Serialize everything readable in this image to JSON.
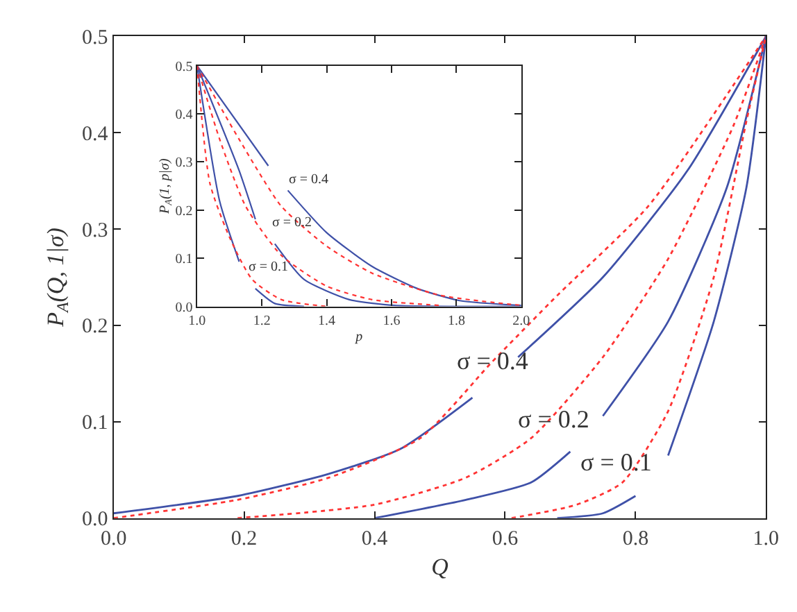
{
  "chart_data": [
    {
      "type": "line",
      "xlabel": "Q",
      "ylabel": "P$_{A}$(Q, 1|σ)",
      "xlim": [
        0,
        1
      ],
      "ylim": [
        0,
        0.5
      ],
      "xticks": [
        {
          "value": 0,
          "label": "0.0"
        },
        0.2,
        0.4,
        0.6,
        0.8,
        {
          "value": 1,
          "label": "1.0"
        }
      ],
      "yticks": [
        {
          "value": 0,
          "label": "0.0"
        },
        0.1,
        0.2,
        0.3,
        0.4,
        0.5
      ],
      "marker": "none",
      "series": [
        {
          "color": "#3f51a8",
          "line_style": "solid",
          "x": [
            0,
            0.19,
            0.33,
            0.44,
            0.55,
            0.58,
            0.62,
            0.75,
            0.88,
            1
          ],
          "values": [
            0.005,
            0.023,
            0.046,
            0.072,
            0.125,
            null,
            0.167,
            0.25,
            0.361,
            0.5
          ]
        },
        {
          "color": "#ff3333",
          "line_style": "dotted",
          "x": [
            0,
            0.19,
            0.33,
            0.47,
            0.58,
            0.68,
            0.82,
            1
          ],
          "values": [
            0,
            0.019,
            0.042,
            0.083,
            0.162,
            0.231,
            0.324,
            0.5
          ]
        },
        {
          "color": "#3f51a8",
          "line_style": "solid",
          "x": [
            0.4,
            0.54,
            0.64,
            0.7,
            0.73,
            0.75,
            0.85,
            0.94,
            1
          ],
          "values": [
            0,
            0.019,
            0.037,
            0.069,
            null,
            0.106,
            0.204,
            0.343,
            0.5
          ]
        },
        {
          "color": "#ff3333",
          "line_style": "dotted",
          "x": [
            0.19,
            0.4,
            0.54,
            0.64,
            0.75,
            0.85,
            0.95,
            1
          ],
          "values": [
            0,
            0.014,
            0.042,
            0.083,
            0.167,
            0.269,
            0.407,
            0.5
          ]
        },
        {
          "color": "#3f51a8",
          "line_style": "solid",
          "x": [
            0.68,
            0.75,
            0.8,
            0.82,
            0.85,
            0.92,
            0.97,
            1
          ],
          "values": [
            0,
            0.005,
            0.023,
            null,
            0.065,
            0.204,
            0.343,
            0.5
          ]
        },
        {
          "color": "#ff3333",
          "line_style": "dotted",
          "x": [
            0.61,
            0.71,
            0.78,
            0.85,
            0.92,
            0.97,
            1
          ],
          "values": [
            0,
            0.014,
            0.037,
            0.111,
            0.25,
            0.412,
            0.5
          ]
        }
      ],
      "annotations": [
        "σ = 0.4",
        "σ = 0.2",
        "σ = 0.1"
      ]
    },
    {
      "type": "line",
      "xlabel": "p",
      "ylabel": "P$_{A}$(1, p|σ)",
      "xlim": [
        1,
        2
      ],
      "ylim": [
        0,
        0.5
      ],
      "xticks": [
        {
          "value": 1,
          "label": "1.0"
        },
        1.2,
        1.4,
        1.6,
        1.8,
        {
          "value": 2,
          "label": "2.0"
        }
      ],
      "yticks": [
        {
          "value": 0,
          "label": "0.0"
        },
        0.1,
        0.2,
        0.3,
        0.4,
        0.5
      ],
      "marker": "none",
      "series": [
        {
          "color": "#3f51a8",
          "line_style": "solid",
          "x": [
            1,
            1.22,
            1.25,
            1.28,
            1.4,
            1.54,
            1.68,
            1.81,
            2
          ],
          "values": [
            0.5,
            0.292,
            null,
            0.241,
            0.153,
            0.083,
            0.037,
            0.012,
            0.002
          ]
        },
        {
          "color": "#ff3333",
          "line_style": "dotted",
          "x": [
            1,
            1.13,
            1.26,
            1.4,
            1.54,
            1.75,
            2
          ],
          "values": [
            0.5,
            0.347,
            0.208,
            0.125,
            0.069,
            0.023,
            0.002
          ]
        },
        {
          "color": "#3f51a8",
          "line_style": "solid",
          "x": [
            1,
            1.13,
            1.18,
            1.21,
            1.24,
            1.33,
            1.47,
            1.61,
            2
          ],
          "values": [
            0.5,
            0.282,
            0.181,
            null,
            0.13,
            0.056,
            0.014,
            0.002,
            0
          ]
        },
        {
          "color": "#ff3333",
          "line_style": "dotted",
          "x": [
            1,
            1.07,
            1.15,
            1.26,
            1.4,
            1.54,
            1.75
          ],
          "values": [
            0.5,
            0.347,
            0.208,
            0.106,
            0.042,
            0.014,
            0.002
          ]
        },
        {
          "color": "#3f51a8",
          "line_style": "solid",
          "x": [
            1,
            1.07,
            1.13,
            1.15,
            1.18,
            1.24,
            1.33
          ],
          "values": [
            0.5,
            0.218,
            0.093,
            null,
            0.037,
            0.006,
            0
          ]
        },
        {
          "color": "#ff3333",
          "line_style": "dotted",
          "x": [
            1,
            1.04,
            1.1,
            1.17,
            1.26,
            1.4
          ],
          "values": [
            0.5,
            0.255,
            0.144,
            0.056,
            0.014,
            0
          ]
        }
      ],
      "annotations": [
        "σ = 0.4",
        "σ = 0.2",
        "σ = 0.1"
      ]
    }
  ]
}
